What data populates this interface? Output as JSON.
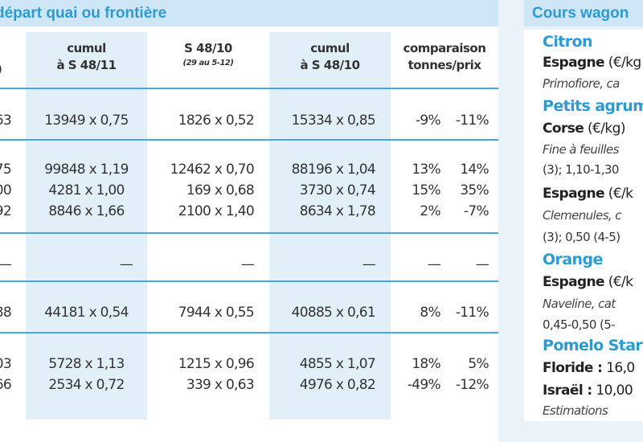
{
  "main": {
    "title": "départ quai ou frontière",
    "headers": [
      {
        "line1": "cumul",
        "line2": "à S 48/11",
        "sub": ""
      },
      {
        "line1": "S 48/10",
        "line2": "",
        "sub": "(29 au 5-12)"
      },
      {
        "line1": "cumul",
        "line2": "à S 48/10",
        "sub": ""
      },
      {
        "line1": "comparaison",
        "line2": "tonnes/prix",
        "sub": ""
      }
    ],
    "header_partial": ")",
    "groups": [
      {
        "rows": [
          {
            "c0": "63",
            "c1": "13949 x 0,75",
            "c2": "1826 x 0,52",
            "c3": "15334 x 0,85",
            "c4a": "-9%",
            "c4b": "-11%"
          }
        ]
      },
      {
        "rows": [
          {
            "c0": "75",
            "c1": "99848 x 1,19",
            "c2": "12462 x 0,70",
            "c3": "88196 x 1,04",
            "c4a": "13%",
            "c4b": "14%"
          },
          {
            "c0": "00",
            "c1": "4281 x 1,00",
            "c2": "169 x 0,68",
            "c3": "3730 x 0,74",
            "c4a": "15%",
            "c4b": "35%"
          },
          {
            "c0": "92",
            "c1": "8846 x 1,66",
            "c2": "2100 x 1,40",
            "c3": "8634 x 1,78",
            "c4a": "2%",
            "c4b": "-7%"
          }
        ]
      },
      {
        "rows": [
          {
            "c0": "—",
            "c1": "—",
            "c2": "—",
            "c3": "—",
            "c4a": "—",
            "c4b": "—"
          }
        ]
      },
      {
        "rows": [
          {
            "c0": "88",
            "c1": "44181 x 0,54",
            "c2": "7944 x 0,55",
            "c3": "40885 x 0,61",
            "c4a": "8%",
            "c4b": "-11%"
          }
        ]
      },
      {
        "rows": [
          {
            "c0": "03",
            "c1": "5728 x 1,13",
            "c2": "1215 x 0,96",
            "c3": "4855 x 1,07",
            "c4a": "18%",
            "c4b": "5%"
          },
          {
            "c0": "66",
            "c1": "2534 x 0,72",
            "c2": "339 x 0,63",
            "c3": "4976 x 0,82",
            "c4a": "-49%",
            "c4b": "-12%"
          }
        ]
      }
    ]
  },
  "side": {
    "title": "Cours wagon",
    "lines": [
      {
        "kind": "head",
        "text": "Citron"
      },
      {
        "kind": "country",
        "bold": "Espagne",
        "rest": " (€/kg"
      },
      {
        "kind": "italic",
        "text": "Primofiore, ca"
      },
      {
        "kind": "head",
        "text": "Petits agrum"
      },
      {
        "kind": "country",
        "bold": "Corse",
        "rest": " (€/kg)"
      },
      {
        "kind": "italic",
        "text": "Fine à feuilles"
      },
      {
        "kind": "plain",
        "text": "(3); 1,10-1,30"
      },
      {
        "kind": "country",
        "bold": "Espagne",
        "rest": " (€/k"
      },
      {
        "kind": "italic",
        "text": "Clemenules, c"
      },
      {
        "kind": "plain",
        "text": "(3); 0,50 (4-5)"
      },
      {
        "kind": "head",
        "text": "Orange"
      },
      {
        "kind": "country",
        "bold": "Espagne",
        "rest": " (€/k"
      },
      {
        "kind": "italic",
        "text": "Naveline, cat"
      },
      {
        "kind": "plain",
        "text": "0,45-0,50 (5-"
      },
      {
        "kind": "head",
        "text": "Pomelo Star"
      },
      {
        "kind": "country",
        "bold": "Floride :",
        "rest": " 16,0"
      },
      {
        "kind": "country",
        "bold": "Israël :",
        "rest": " 10,00"
      },
      {
        "kind": "italic",
        "text": "Estimations"
      }
    ]
  }
}
